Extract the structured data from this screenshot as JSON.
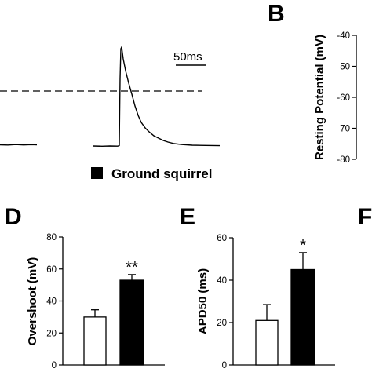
{
  "panels": {
    "B": "B",
    "D": "D",
    "E": "E",
    "F": "F"
  },
  "trace": {
    "scale_bar_label": "50ms",
    "legend_label": "Ground squirrel",
    "legend_color": "#000000"
  },
  "chart_data": [
    {
      "id": "B",
      "type": "bar",
      "ylabel": "Resting Potential (mV)",
      "ylim": [
        -80,
        -40
      ],
      "yticks": [
        -40,
        -50,
        -60,
        -70,
        -80
      ],
      "categories": [],
      "values": []
    },
    {
      "id": "D",
      "type": "bar",
      "ylabel": "Overshoot (mV)",
      "ylim": [
        0,
        80
      ],
      "yticks": [
        0,
        20,
        40,
        60,
        80
      ],
      "categories": [
        "open",
        "filled"
      ],
      "values": [
        30,
        53
      ],
      "errors": [
        4.5,
        3.5
      ],
      "colors": [
        "#ffffff",
        "#000000"
      ],
      "annotation": "**"
    },
    {
      "id": "E",
      "type": "bar",
      "ylabel": "APD50 (ms)",
      "ylim": [
        0,
        60
      ],
      "yticks": [
        0,
        20,
        40,
        60
      ],
      "categories": [
        "open",
        "filled"
      ],
      "values": [
        21,
        45
      ],
      "errors": [
        7.5,
        8
      ],
      "colors": [
        "#ffffff",
        "#000000"
      ],
      "annotation": "*"
    }
  ]
}
